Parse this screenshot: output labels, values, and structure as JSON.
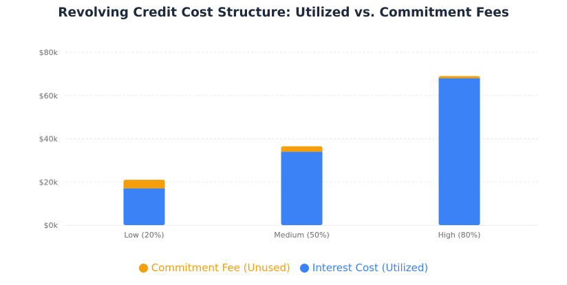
{
  "chart_data": {
    "type": "bar",
    "stacked": true,
    "title": "Revolving Credit Cost Structure: Utilized vs. Commitment Fees",
    "categories": [
      "Low (20%)",
      "Medium (50%)",
      "High (80%)"
    ],
    "series": [
      {
        "name": "Interest Cost (Utilized)",
        "color": "#3b82f6",
        "values": [
          17000,
          34000,
          68000
        ]
      },
      {
        "name": "Commitment Fee (Unused)",
        "color": "#f59e0b",
        "values": [
          4000,
          2500,
          1000
        ]
      }
    ],
    "ylim": [
      0,
      80000
    ],
    "yticks": [
      0,
      20000,
      40000,
      60000,
      80000
    ],
    "ytick_labels": [
      "$0k",
      "$20k",
      "$40k",
      "$60k",
      "$80k"
    ],
    "grid": true,
    "legend_order": [
      "Commitment Fee (Unused)",
      "Interest Cost (Utilized)"
    ],
    "legend_position": "bottom"
  }
}
